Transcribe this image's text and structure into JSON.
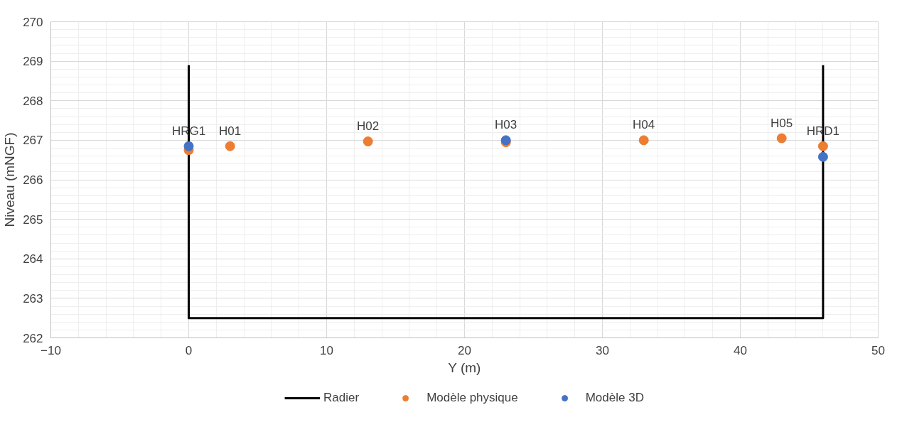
{
  "chart_data": {
    "type": "scatter",
    "xlabel": "Y (m)",
    "ylabel": "Niveau (mNGF)",
    "xlim": [
      -10,
      50
    ],
    "xticks": [
      -10,
      0,
      10,
      20,
      30,
      40,
      50
    ],
    "ylim": [
      262,
      270
    ],
    "yticks": [
      262,
      263,
      264,
      265,
      266,
      267,
      268,
      269,
      270
    ],
    "grid": true,
    "legend": "bottom",
    "marker": "circle",
    "series": [
      {
        "name": "Radier",
        "type": "line",
        "marker": "none",
        "color": "#000000",
        "x": [
          0,
          0,
          46,
          46
        ],
        "values": [
          268.9,
          262.5,
          262.5,
          268.9
        ]
      },
      {
        "name": "Modèle physique",
        "color": "#ed7d31",
        "x": [
          0,
          3,
          13,
          23,
          33,
          43,
          46
        ],
        "values": [
          266.75,
          266.85,
          266.97,
          266.95,
          267.0,
          267.05,
          266.85
        ]
      },
      {
        "name": "Modèle 3D",
        "color": "#4472c4",
        "x": [
          0,
          23,
          46
        ],
        "values": [
          266.85,
          267.0,
          266.58
        ]
      }
    ],
    "annotations": [
      {
        "text": "HRG1",
        "x": 0,
        "y": 266.85
      },
      {
        "text": "H01",
        "x": 3,
        "y": 266.85
      },
      {
        "text": "H02",
        "x": 13,
        "y": 266.97
      },
      {
        "text": "H03",
        "x": 23,
        "y": 267.0
      },
      {
        "text": "H04",
        "x": 33,
        "y": 267.0
      },
      {
        "text": "H05",
        "x": 43,
        "y": 267.05
      },
      {
        "text": "HRD1",
        "x": 46,
        "y": 266.85
      }
    ]
  }
}
